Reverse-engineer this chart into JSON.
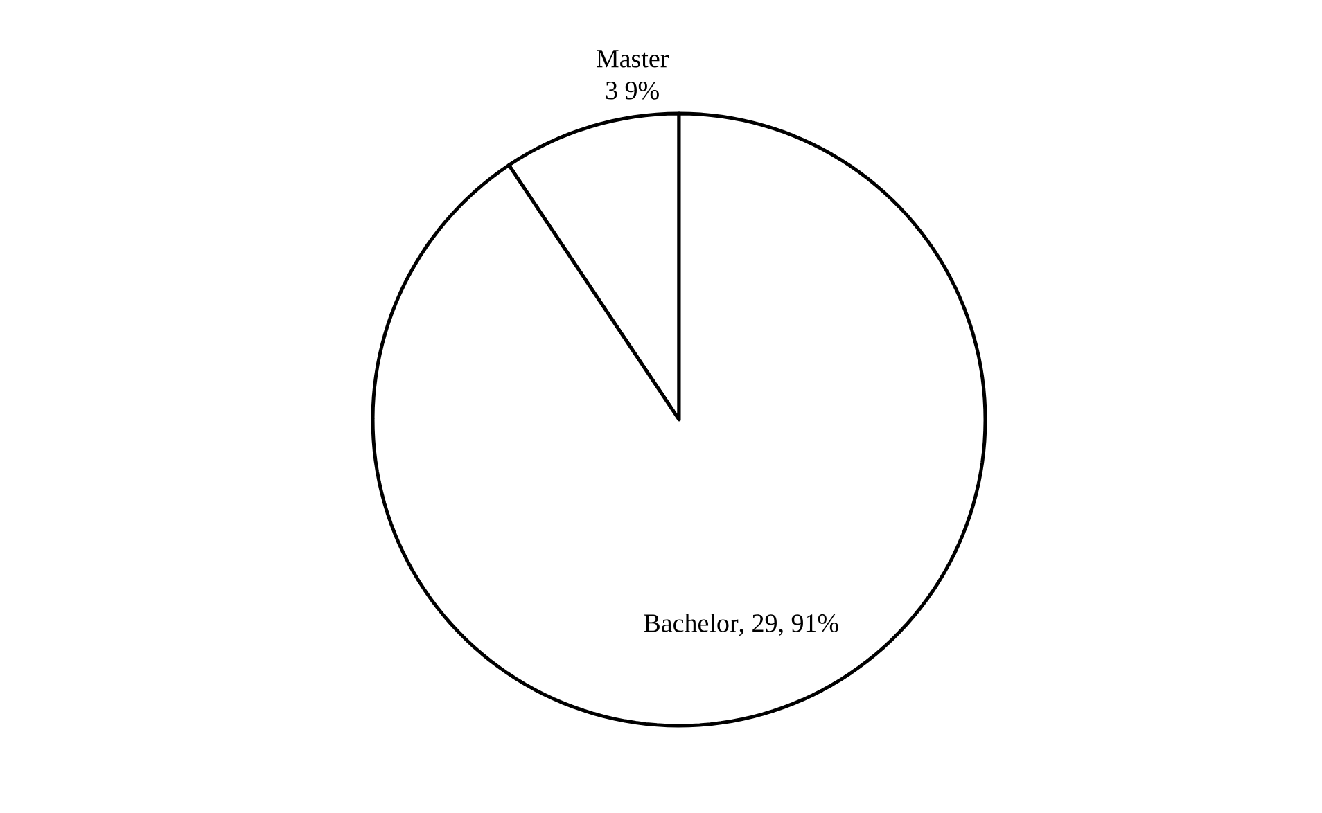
{
  "chart_data": {
    "type": "pie",
    "categories": [
      "Master",
      "Bachelor"
    ],
    "values": [
      3,
      29
    ],
    "value_labels": [
      "3 9%",
      ", 29, 91%"
    ],
    "colors": [
      "#ffffff",
      "#ffffff"
    ]
  }
}
